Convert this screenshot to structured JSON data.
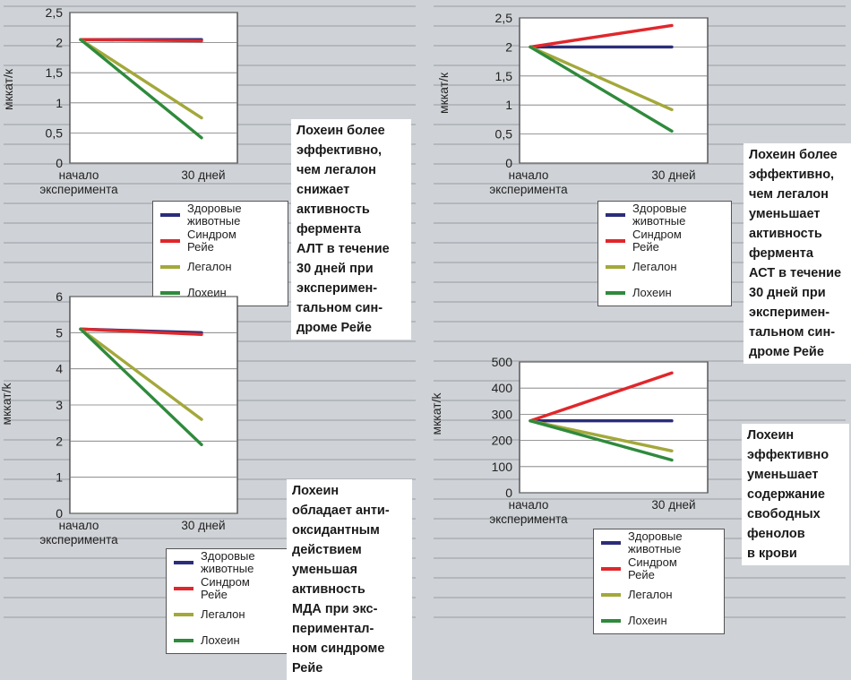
{
  "series_colors": {
    "Здоровые животные": "#2b2d7a",
    "Синдром Рейе": "#e0272b",
    "Легалон": "#a3a83a",
    "Лохеин": "#2f8a3c"
  },
  "chart_data": [
    {
      "type": "line",
      "ylabel": "мккат/к",
      "x_ticks": [
        "начало\nэксперимента",
        "30 дней"
      ],
      "y_ticks": [
        "0",
        "0,5",
        "1",
        "1,5",
        "2",
        "2,5"
      ],
      "ylim": [
        0,
        2.5
      ],
      "series": [
        {
          "name": "Здоровые животные",
          "values": [
            2.05,
            2.05
          ]
        },
        {
          "name": "Синдром Рейе",
          "values": [
            2.05,
            2.03
          ]
        },
        {
          "name": "Легалон",
          "values": [
            2.05,
            0.75
          ]
        },
        {
          "name": "Лохеин",
          "values": [
            2.05,
            0.42
          ]
        }
      ],
      "legend": [
        "Здоровые\nживотные",
        "Синдром\nРейе",
        "Легалон",
        "Лохеин"
      ],
      "annotation": "Лохеин более\nэффективно,\nчем легалон\nснижает\nактивность\nфермента\nАЛТ в течение\n30 дней при\nэксперимен-\nтальном син-\nдроме Рейе"
    },
    {
      "type": "line",
      "ylabel": "мккат/к",
      "x_ticks": [
        "начало\nэксперимента",
        "30 дней"
      ],
      "y_ticks": [
        "0",
        "0,5",
        "1",
        "1,5",
        "2",
        "2,5"
      ],
      "ylim": [
        0,
        2.5
      ],
      "series": [
        {
          "name": "Здоровые животные",
          "values": [
            2.0,
            2.0
          ]
        },
        {
          "name": "Синдром Рейе",
          "values": [
            2.0,
            2.37
          ]
        },
        {
          "name": "Легалон",
          "values": [
            2.0,
            0.92
          ]
        },
        {
          "name": "Лохеин",
          "values": [
            2.0,
            0.55
          ]
        }
      ],
      "legend": [
        "Здоровые\nживотные",
        "Синдром\nРейе",
        "Легалон",
        "Лохеин"
      ],
      "annotation": "Лохеин более\nэффективно,\nчем легалон\nуменьшает\nактивность\nфермента\nАСТ в течение\n30 дней при\nэксперимен-\nтальном син-\nдроме Рейе"
    },
    {
      "type": "line",
      "ylabel": "мккат/k",
      "x_ticks": [
        "начало\nэксперимента",
        "30 дней"
      ],
      "y_ticks": [
        "0",
        "1",
        "2",
        "3",
        "4",
        "5",
        "6"
      ],
      "ylim": [
        0,
        6
      ],
      "series": [
        {
          "name": "Здоровые животные",
          "values": [
            5.1,
            5.0
          ]
        },
        {
          "name": "Синдром Рейе",
          "values": [
            5.1,
            4.95
          ]
        },
        {
          "name": "Легалон",
          "values": [
            5.1,
            2.6
          ]
        },
        {
          "name": "Лохеин",
          "values": [
            5.1,
            1.9
          ]
        }
      ],
      "legend": [
        "Здоровые\nживотные",
        "Синдром\nРейе",
        "Легалон",
        "Лохеин"
      ],
      "annotation": "Лохеин\nобладает анти-\nоксидантным\nдействием\nуменьшая\nактивность\nМДА при экс-\nпериментал-\nном синдроме\nРейе"
    },
    {
      "type": "line",
      "ylabel": "мккат/k",
      "x_ticks": [
        "начало\nэксперимента",
        "30 дней"
      ],
      "y_ticks": [
        "0",
        "100",
        "200",
        "300",
        "400",
        "500"
      ],
      "ylim": [
        0,
        500
      ],
      "series": [
        {
          "name": "Здоровые животные",
          "values": [
            275,
            275
          ]
        },
        {
          "name": "Синдром Рейе",
          "values": [
            275,
            458
          ]
        },
        {
          "name": "Легалон",
          "values": [
            275,
            160
          ]
        },
        {
          "name": "Лохеин",
          "values": [
            275,
            125
          ]
        }
      ],
      "legend": [
        "Здоровые\nживотные",
        "Синдром\nРейе",
        "Легалон",
        "Лохеин"
      ],
      "annotation": "Лохеин\nэффективно\nуменьшает\nсодержание\nсвободных\nфенолов\nв крови"
    }
  ]
}
